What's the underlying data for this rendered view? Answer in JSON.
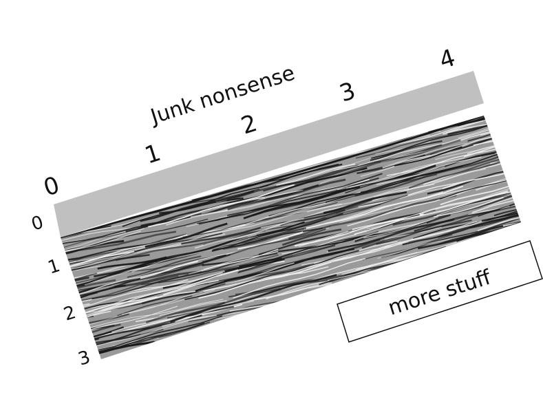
{
  "figure": {
    "title": "Junk nonsense",
    "top_ticks": [
      "0",
      "1",
      "2",
      "3",
      "4"
    ],
    "side_ticks": [
      "0",
      "1",
      "2",
      "3"
    ],
    "box_label": "more stuff"
  },
  "colors": {
    "header_band": "#c0c0c0",
    "background": "#ffffff",
    "seismic_base": "#9a9a9a",
    "seismic_dark": "#1a1a1a",
    "seismic_light": "#f2f2f2"
  }
}
